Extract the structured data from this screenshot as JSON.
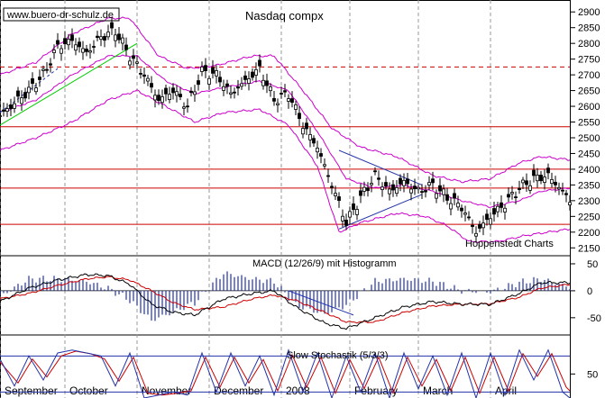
{
  "chart_data": [
    {
      "type": "candlestick",
      "title": "Nasdaq compx",
      "watermark": "www.buero-dr-schulz.de",
      "source_note": "Hoppenstedt Charts",
      "y_ticks": [
        2150,
        2200,
        2250,
        2300,
        2350,
        2400,
        2450,
        2500,
        2550,
        2600,
        2650,
        2700,
        2750,
        2800,
        2850,
        2900
      ],
      "ylim": [
        2125,
        2915
      ],
      "x_months": [
        "September",
        "October",
        "November",
        "December",
        "2008",
        "February",
        "March",
        "April"
      ],
      "horizontal_lines": [
        {
          "value": 2725,
          "style": "dashed",
          "color": "#cc0000"
        },
        {
          "value": 2535,
          "style": "solid",
          "color": "#cc0000"
        },
        {
          "value": 2400,
          "style": "solid",
          "color": "#cc0000"
        },
        {
          "value": 2340,
          "style": "solid",
          "color": "#cc0000"
        },
        {
          "value": 2225,
          "style": "solid",
          "color": "#cc0000"
        }
      ],
      "close_path": [
        [
          0,
          2570
        ],
        [
          4,
          2610
        ],
        [
          8,
          2650
        ],
        [
          12,
          2700
        ],
        [
          16,
          2790
        ],
        [
          20,
          2810
        ],
        [
          24,
          2770
        ],
        [
          28,
          2820
        ],
        [
          32,
          2840
        ],
        [
          36,
          2760
        ],
        [
          40,
          2700
        ],
        [
          44,
          2620
        ],
        [
          48,
          2650
        ],
        [
          52,
          2600
        ],
        [
          56,
          2710
        ],
        [
          60,
          2700
        ],
        [
          64,
          2640
        ],
        [
          68,
          2680
        ],
        [
          72,
          2720
        ],
        [
          76,
          2620
        ],
        [
          80,
          2640
        ],
        [
          84,
          2540
        ],
        [
          88,
          2470
        ],
        [
          92,
          2350
        ],
        [
          96,
          2230
        ],
        [
          100,
          2310
        ],
        [
          104,
          2380
        ],
        [
          108,
          2330
        ],
        [
          112,
          2360
        ],
        [
          116,
          2330
        ],
        [
          120,
          2350
        ],
        [
          124,
          2310
        ],
        [
          128,
          2280
        ],
        [
          132,
          2200
        ],
        [
          136,
          2250
        ],
        [
          140,
          2290
        ],
        [
          144,
          2340
        ],
        [
          148,
          2370
        ],
        [
          152,
          2380
        ],
        [
          156,
          2330
        ],
        [
          158,
          2300
        ]
      ],
      "bollinger": {
        "upper": [
          [
            0,
            2700
          ],
          [
            10,
            2740
          ],
          [
            20,
            2830
          ],
          [
            30,
            2880
          ],
          [
            36,
            2880
          ],
          [
            44,
            2760
          ],
          [
            52,
            2720
          ],
          [
            60,
            2730
          ],
          [
            70,
            2760
          ],
          [
            76,
            2760
          ],
          [
            84,
            2650
          ],
          [
            92,
            2530
          ],
          [
            100,
            2470
          ],
          [
            110,
            2440
          ],
          [
            120,
            2380
          ],
          [
            128,
            2360
          ],
          [
            136,
            2370
          ],
          [
            144,
            2420
          ],
          [
            150,
            2440
          ],
          [
            158,
            2430
          ]
        ],
        "middle": [
          [
            0,
            2580
          ],
          [
            10,
            2620
          ],
          [
            20,
            2700
          ],
          [
            30,
            2760
          ],
          [
            38,
            2760
          ],
          [
            46,
            2680
          ],
          [
            54,
            2640
          ],
          [
            62,
            2660
          ],
          [
            72,
            2680
          ],
          [
            80,
            2650
          ],
          [
            88,
            2520
          ],
          [
            96,
            2370
          ],
          [
            104,
            2340
          ],
          [
            112,
            2350
          ],
          [
            120,
            2330
          ],
          [
            128,
            2300
          ],
          [
            136,
            2280
          ],
          [
            144,
            2300
          ],
          [
            150,
            2330
          ],
          [
            158,
            2340
          ]
        ],
        "lower": [
          [
            0,
            2460
          ],
          [
            10,
            2500
          ],
          [
            20,
            2550
          ],
          [
            30,
            2620
          ],
          [
            38,
            2650
          ],
          [
            46,
            2600
          ],
          [
            54,
            2550
          ],
          [
            62,
            2580
          ],
          [
            72,
            2590
          ],
          [
            80,
            2540
          ],
          [
            88,
            2410
          ],
          [
            94,
            2200
          ],
          [
            100,
            2230
          ],
          [
            110,
            2260
          ],
          [
            118,
            2250
          ],
          [
            124,
            2220
          ],
          [
            130,
            2170
          ],
          [
            138,
            2170
          ],
          [
            146,
            2190
          ],
          [
            152,
            2200
          ],
          [
            158,
            2210
          ]
        ]
      },
      "trendlines": [
        {
          "color": "#00cc00",
          "from": [
            0,
            2540
          ],
          "to": [
            38,
            2800
          ]
        },
        {
          "color": "#2233aa",
          "from": [
            0,
            2580
          ],
          "to": [
            16,
            2720
          ],
          "style": "dashed"
        },
        {
          "color": "#2233aa",
          "from": [
            94,
            2210
          ],
          "to": [
            117,
            2320
          ]
        },
        {
          "color": "#2233aa",
          "from": [
            94,
            2460
          ],
          "to": [
            117,
            2350
          ]
        }
      ]
    },
    {
      "type": "macd",
      "title": "MACD (12/26/9) mit Histogramm",
      "y_ticks": [
        50,
        0,
        -50
      ],
      "ylim": [
        -82,
        65
      ],
      "macd": [
        [
          0,
          -20
        ],
        [
          8,
          5
        ],
        [
          16,
          20
        ],
        [
          24,
          30
        ],
        [
          30,
          28
        ],
        [
          36,
          12
        ],
        [
          42,
          -25
        ],
        [
          48,
          -40
        ],
        [
          54,
          -45
        ],
        [
          62,
          -15
        ],
        [
          70,
          -5
        ],
        [
          76,
          0
        ],
        [
          82,
          -30
        ],
        [
          90,
          -60
        ],
        [
          96,
          -70
        ],
        [
          104,
          -50
        ],
        [
          112,
          -30
        ],
        [
          120,
          -20
        ],
        [
          128,
          -25
        ],
        [
          136,
          -25
        ],
        [
          144,
          -5
        ],
        [
          150,
          15
        ],
        [
          158,
          15
        ]
      ],
      "signal": [
        [
          0,
          -15
        ],
        [
          8,
          -5
        ],
        [
          16,
          10
        ],
        [
          24,
          22
        ],
        [
          30,
          26
        ],
        [
          36,
          20
        ],
        [
          42,
          0
        ],
        [
          48,
          -22
        ],
        [
          54,
          -35
        ],
        [
          62,
          -30
        ],
        [
          70,
          -15
        ],
        [
          76,
          -8
        ],
        [
          82,
          -18
        ],
        [
          90,
          -40
        ],
        [
          96,
          -58
        ],
        [
          104,
          -58
        ],
        [
          112,
          -40
        ],
        [
          120,
          -28
        ],
        [
          128,
          -25
        ],
        [
          136,
          -24
        ],
        [
          144,
          -12
        ],
        [
          150,
          5
        ],
        [
          158,
          12
        ]
      ],
      "trendline": {
        "color": "#2233aa",
        "from": [
          80,
          0
        ],
        "to": [
          98,
          -45
        ]
      }
    },
    {
      "type": "stochastic",
      "title": "Slow Stochastik (5/3/3)",
      "y_ticks": [
        50
      ],
      "ylim": [
        -5,
        100
      ],
      "levels": [
        80,
        20
      ],
      "k_line": [
        [
          0,
          75
        ],
        [
          4,
          30
        ],
        [
          8,
          80
        ],
        [
          12,
          40
        ],
        [
          16,
          85
        ],
        [
          20,
          90
        ],
        [
          24,
          85
        ],
        [
          28,
          80
        ],
        [
          32,
          30
        ],
        [
          36,
          85
        ],
        [
          40,
          10
        ],
        [
          44,
          15
        ],
        [
          48,
          20
        ],
        [
          52,
          15
        ],
        [
          56,
          85
        ],
        [
          60,
          20
        ],
        [
          64,
          85
        ],
        [
          68,
          30
        ],
        [
          72,
          80
        ],
        [
          76,
          15
        ],
        [
          80,
          90
        ],
        [
          84,
          20
        ],
        [
          88,
          85
        ],
        [
          92,
          10
        ],
        [
          96,
          80
        ],
        [
          100,
          20
        ],
        [
          104,
          85
        ],
        [
          108,
          10
        ],
        [
          112,
          85
        ],
        [
          116,
          25
        ],
        [
          120,
          80
        ],
        [
          124,
          15
        ],
        [
          128,
          85
        ],
        [
          132,
          10
        ],
        [
          136,
          85
        ],
        [
          140,
          15
        ],
        [
          144,
          90
        ],
        [
          148,
          40
        ],
        [
          152,
          90
        ],
        [
          156,
          20
        ],
        [
          158,
          10
        ]
      ],
      "d_line": [
        [
          0,
          70
        ],
        [
          5,
          35
        ],
        [
          9,
          75
        ],
        [
          13,
          45
        ],
        [
          17,
          80
        ],
        [
          21,
          88
        ],
        [
          25,
          84
        ],
        [
          29,
          75
        ],
        [
          33,
          38
        ],
        [
          37,
          78
        ],
        [
          41,
          18
        ],
        [
          45,
          15
        ],
        [
          49,
          18
        ],
        [
          53,
          22
        ],
        [
          57,
          78
        ],
        [
          61,
          28
        ],
        [
          65,
          78
        ],
        [
          69,
          35
        ],
        [
          73,
          74
        ],
        [
          77,
          22
        ],
        [
          81,
          82
        ],
        [
          85,
          28
        ],
        [
          89,
          78
        ],
        [
          93,
          18
        ],
        [
          97,
          74
        ],
        [
          101,
          26
        ],
        [
          105,
          78
        ],
        [
          109,
          18
        ],
        [
          113,
          78
        ],
        [
          117,
          30
        ],
        [
          121,
          74
        ],
        [
          125,
          22
        ],
        [
          129,
          78
        ],
        [
          133,
          18
        ],
        [
          137,
          78
        ],
        [
          141,
          22
        ],
        [
          145,
          84
        ],
        [
          149,
          46
        ],
        [
          153,
          84
        ],
        [
          157,
          28
        ],
        [
          158,
          22
        ]
      ]
    }
  ]
}
